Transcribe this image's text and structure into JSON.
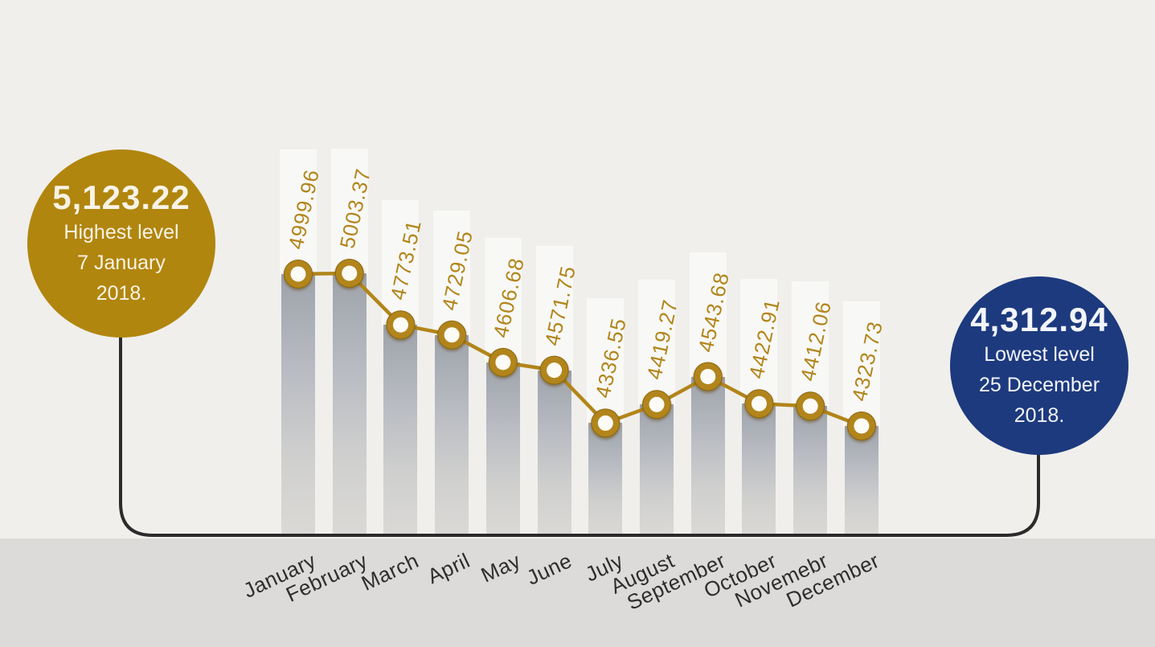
{
  "chart_data": {
    "type": "bar+line",
    "categories": [
      "January",
      "February",
      "March",
      "April",
      "May",
      "June",
      "July",
      "August",
      "September",
      "October",
      "Novemebr",
      "December"
    ],
    "values": [
      4999.96,
      5003.37,
      4773.51,
      4729.05,
      4606.68,
      4571.75,
      4336.55,
      4419.27,
      4543.68,
      4422.91,
      4412.06,
      4323.73
    ],
    "value_labels": [
      "4999.96",
      "5003.37",
      "4773.51",
      "4729.05",
      "4606.68",
      "4571.75",
      "4336.55",
      "4419.27",
      "4543.68",
      "4422.91",
      "4412.06",
      "4323.73"
    ],
    "title": "",
    "xlabel": "",
    "ylabel": "",
    "ylim": [
      4323.73,
      5003.37
    ],
    "grid": false,
    "legend": null,
    "line_color": "#b2851a",
    "marker_ring_color": "#b2851a",
    "marker_center_color": "#fcfbf6",
    "bar_top_color": "#9ea3ab",
    "bar_bottom_color": "#dad9d6"
  },
  "callouts": {
    "highest": {
      "value": "5,123.22",
      "label": "Highest level",
      "date": "7 January",
      "year": "2018.",
      "bg_color": "#b1860e"
    },
    "lowest": {
      "value": "4,312.94",
      "label": "Lowest level",
      "date": "25 December",
      "year": "2018.",
      "bg_color": "#1d3a7e"
    }
  },
  "colors": {
    "background": "#f0efec",
    "footer_band": "#dcdbd9",
    "connector_line": "#2b2b2b",
    "month_label": "#2d2d2d",
    "value_label": "#b2851a"
  }
}
